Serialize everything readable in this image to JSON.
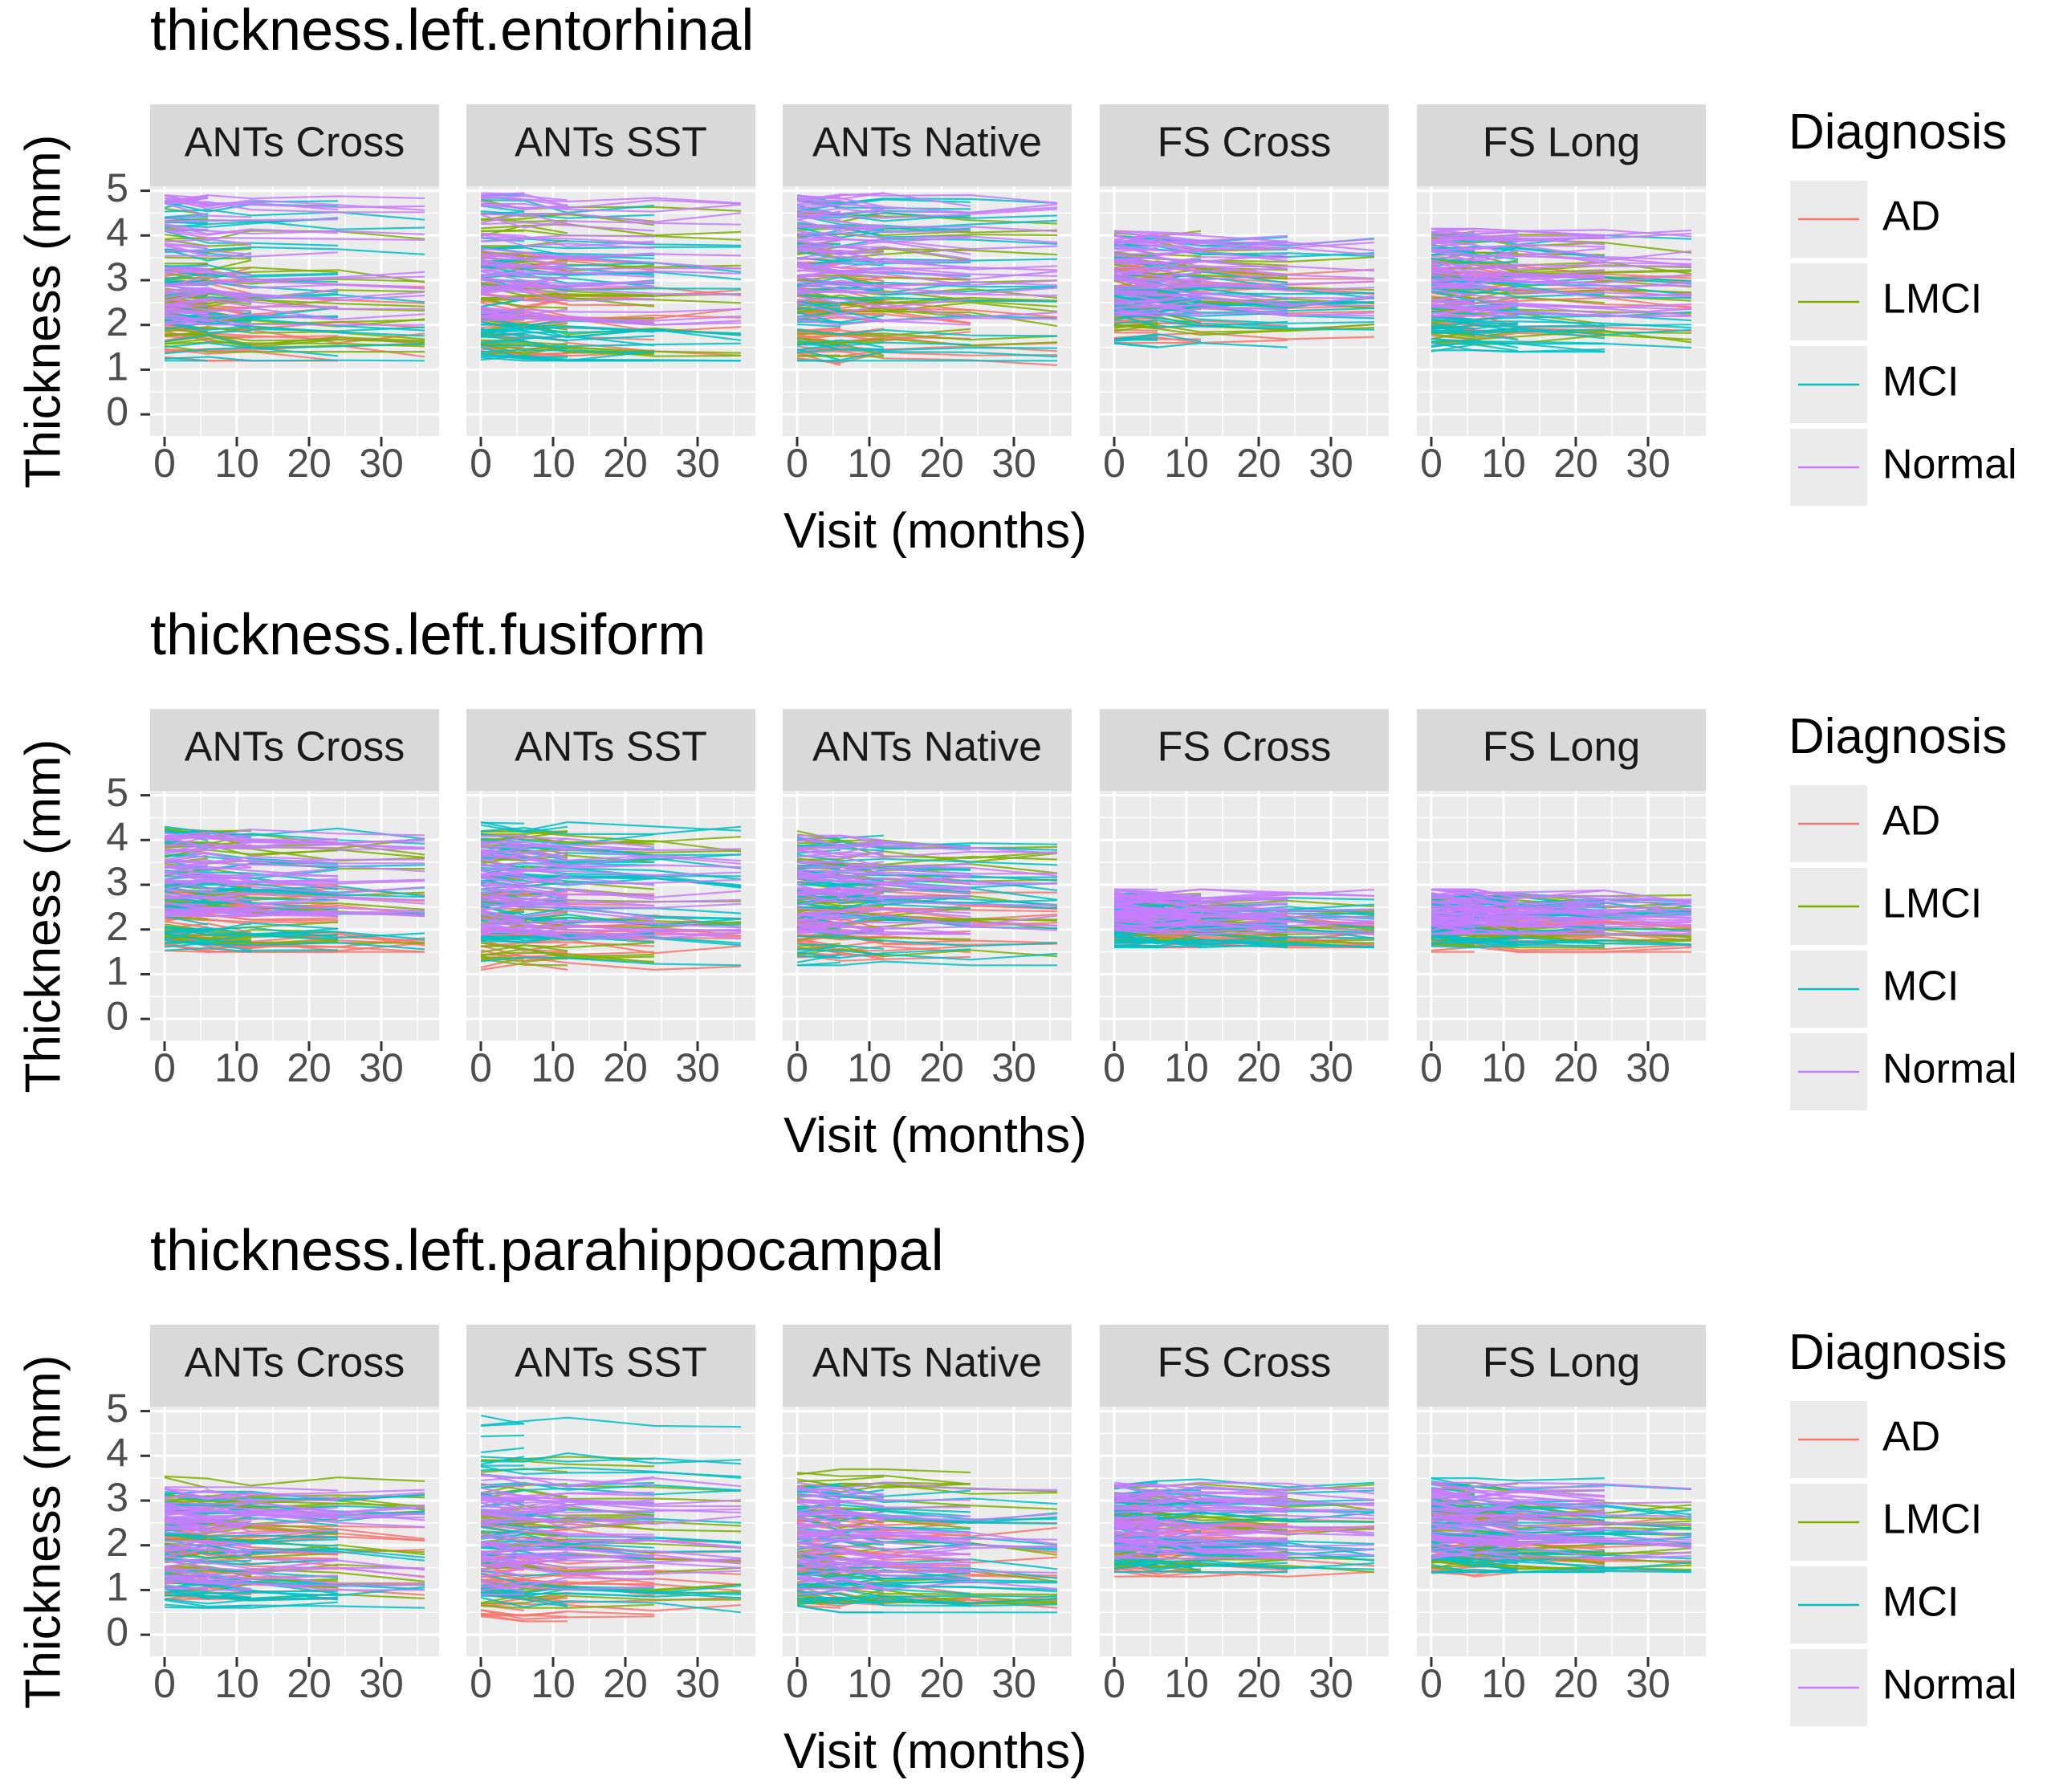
{
  "chart_data": {
    "type": "line",
    "legend": {
      "title": "Diagnosis",
      "position": "right",
      "entries": [
        {
          "name": "AD",
          "color": "#F8766D"
        },
        {
          "name": "LMCI",
          "color": "#7CAE00"
        },
        {
          "name": "MCI",
          "color": "#00BFC4"
        },
        {
          "name": "Normal",
          "color": "#C77CFF"
        }
      ]
    },
    "xlabel": "Visit (months)",
    "ylabel": "Thickness (mm)",
    "xlim": [
      -2,
      38
    ],
    "ylim": [
      -0.5,
      5.1
    ],
    "x_ticks": [
      0,
      10,
      20,
      30
    ],
    "y_ticks": [
      0,
      1,
      2,
      3,
      4,
      5
    ],
    "visits": [
      0,
      6,
      12,
      24,
      36
    ],
    "panels": [
      "ANTs Cross",
      "ANTs SST",
      "ANTs Native",
      "FS Cross",
      "FS Long"
    ],
    "grid": true,
    "rows": [
      {
        "title": "thickness.left.entorhinal",
        "range": {
          "ANTs Cross": {
            "AD": [
              1.2,
              3.4
            ],
            "LMCI": [
              1.4,
              4.6
            ],
            "MCI": [
              1.2,
              4.9
            ],
            "Normal": [
              2.0,
              4.9
            ]
          },
          "ANTs SST": {
            "AD": [
              1.3,
              3.6
            ],
            "LMCI": [
              1.3,
              4.8
            ],
            "MCI": [
              1.2,
              4.9
            ],
            "Normal": [
              2.0,
              4.95
            ]
          },
          "ANTs Native": {
            "AD": [
              1.1,
              3.4
            ],
            "LMCI": [
              1.3,
              4.6
            ],
            "MCI": [
              1.2,
              4.9
            ],
            "Normal": [
              2.0,
              4.95
            ]
          },
          "FS Cross": {
            "AD": [
              1.6,
              3.4
            ],
            "LMCI": [
              1.6,
              4.1
            ],
            "MCI": [
              1.5,
              4.0
            ],
            "Normal": [
              2.2,
              4.1
            ]
          },
          "FS Long": {
            "AD": [
              1.6,
              3.4
            ],
            "LMCI": [
              1.5,
              4.1
            ],
            "MCI": [
              1.4,
              4.0
            ],
            "Normal": [
              2.2,
              4.15
            ]
          }
        }
      },
      {
        "title": "thickness.left.fusiform",
        "range": {
          "ANTs Cross": {
            "AD": [
              1.5,
              3.0
            ],
            "LMCI": [
              1.7,
              4.3
            ],
            "MCI": [
              1.5,
              4.3
            ],
            "Normal": [
              2.3,
              4.3
            ]
          },
          "ANTs SST": {
            "AD": [
              1.1,
              2.8
            ],
            "LMCI": [
              1.2,
              4.2
            ],
            "MCI": [
              1.1,
              4.4
            ],
            "Normal": [
              1.8,
              4.1
            ]
          },
          "ANTs Native": {
            "AD": [
              1.3,
              2.9
            ],
            "LMCI": [
              1.4,
              4.2
            ],
            "MCI": [
              1.2,
              4.1
            ],
            "Normal": [
              1.9,
              4.1
            ]
          },
          "FS Cross": {
            "AD": [
              1.6,
              2.4
            ],
            "LMCI": [
              1.7,
              2.8
            ],
            "MCI": [
              1.6,
              2.8
            ],
            "Normal": [
              1.9,
              2.9
            ]
          },
          "FS Long": {
            "AD": [
              1.5,
              2.4
            ],
            "LMCI": [
              1.6,
              2.8
            ],
            "MCI": [
              1.6,
              2.8
            ],
            "Normal": [
              1.9,
              2.9
            ]
          }
        }
      },
      {
        "title": "thickness.left.parahippocampal",
        "range": {
          "ANTs Cross": {
            "AD": [
              0.8,
              2.6
            ],
            "LMCI": [
              0.8,
              3.6
            ],
            "MCI": [
              0.6,
              3.2
            ],
            "Normal": [
              1.0,
              3.3
            ]
          },
          "ANTs SST": {
            "AD": [
              0.3,
              2.7
            ],
            "LMCI": [
              0.6,
              4.0
            ],
            "MCI": [
              0.5,
              4.9
            ],
            "Normal": [
              0.9,
              3.6
            ]
          },
          "ANTs Native": {
            "AD": [
              0.6,
              2.7
            ],
            "LMCI": [
              0.7,
              3.7
            ],
            "MCI": [
              0.5,
              3.4
            ],
            "Normal": [
              0.9,
              3.4
            ]
          },
          "FS Cross": {
            "AD": [
              1.3,
              2.9
            ],
            "LMCI": [
              1.4,
              3.4
            ],
            "MCI": [
              1.4,
              3.5
            ],
            "Normal": [
              1.7,
              3.4
            ]
          },
          "FS Long": {
            "AD": [
              1.3,
              2.9
            ],
            "LMCI": [
              1.4,
              3.4
            ],
            "MCI": [
              1.4,
              3.5
            ],
            "Normal": [
              1.7,
              3.4
            ]
          }
        }
      }
    ]
  }
}
